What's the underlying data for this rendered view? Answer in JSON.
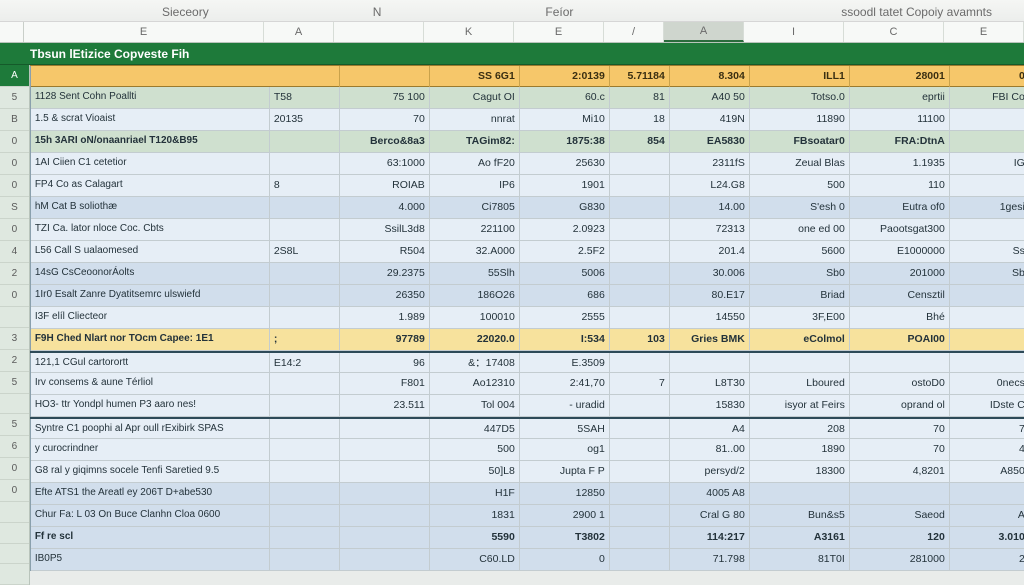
{
  "ribbon": {
    "tab_left": "Sieceory",
    "tab_mid_1": "N",
    "tab_mid_2": "Feíor",
    "tab_right": "ssoodl tatet Copoiy avamnts"
  },
  "column_letters": [
    "E",
    "A",
    "",
    "K",
    "E",
    "/",
    "A",
    "I",
    "C",
    "E"
  ],
  "column_letters_selected_index": 6,
  "title": "Tbsun lEtizice Copveste Fih",
  "row_gutter": [
    "A",
    "5",
    "B",
    "0",
    "0",
    "0",
    "S",
    "0",
    "4",
    "2",
    "0",
    "",
    "3",
    "2",
    "5",
    "",
    "5",
    "6",
    "0",
    "0"
  ],
  "columns": {
    "widths": [
      240,
      70,
      90,
      90,
      90,
      60,
      80,
      100,
      100,
      80
    ]
  },
  "header_row": [
    "",
    "",
    "SS 6G1",
    "2:0139",
    "5.71184",
    "8.304",
    "ILL1",
    "28001",
    "0"
  ],
  "rows": [
    {
      "style": "alt",
      "c": [
        "1128 Sent Cohn Poallti",
        "T58",
        "75 100",
        "Cagut OI",
        "60.c",
        "81",
        "A40 50",
        "Totso.0",
        "eprtii",
        "FBI Co"
      ]
    },
    {
      "style": "band1",
      "c": [
        "1.5 & scrat Vioaist",
        "20135",
        "70",
        "nnrat",
        "Mi10",
        "18",
        "419N",
        "11890",
        "11100",
        ""
      ]
    },
    {
      "style": "alt total",
      "c": [
        "15h 3ARI oN/onaanriael T120&B95",
        "",
        "Berco&8a3",
        "TAGim82:",
        "1875:38",
        "854",
        "EA5830",
        "FBsoatar0",
        "FRA:DtnA",
        ""
      ]
    },
    {
      "style": "band1",
      "c": [
        "1AI Ciien C1 cetetior",
        "",
        "63:1000",
        "Ao fF20",
        "25630",
        "",
        "2311fS",
        "Zeual Blas",
        "1.1935",
        "IG"
      ]
    },
    {
      "style": "band1",
      "c": [
        "FP4 Co as Calagart",
        "8",
        "ROIAB",
        "IP6",
        "1901",
        "",
        "L24.G8",
        "500",
        "110",
        ""
      ]
    },
    {
      "style": "band2",
      "c": [
        "hM Cat B soliothæ",
        "",
        "4.000",
        "Ci7805",
        "G830",
        "",
        "14.00",
        "S'esh 0",
        "Eutra of0",
        "1gesi"
      ]
    },
    {
      "style": "band1",
      "c": [
        "TZI Ca. lator nloce  Coc. Cbts",
        "",
        "SsilL3d8",
        "221100",
        "2.0923",
        "",
        "72313",
        "one ed 00",
        "Paootsgat300",
        ""
      ]
    },
    {
      "style": "band1",
      "c": [
        "L56 Call S ualaomesed",
        "2S8L",
        "R504",
        "32.A000",
        "2.5F2",
        "",
        "201.4",
        "5600",
        "E1000000",
        "Ss"
      ]
    },
    {
      "style": "band2",
      "c": [
        "14sG CsCeoonorÁolts",
        "",
        "29.2375",
        "55Slh",
        "5006",
        "",
        "30.006",
        "Sb0",
        "201000",
        "Sb"
      ]
    },
    {
      "style": "band2",
      "c": [
        "1Ir0 Esalt Zanre Dyatitsemrc ulswiefd",
        "",
        "26350",
        "186O26",
        "686",
        "",
        "80.E17",
        "Briad",
        "Censztil",
        ""
      ]
    },
    {
      "style": "band1",
      "c": [
        "I3F elíl Cliecteor",
        "",
        "1.989",
        "100010",
        "2555",
        "",
        "14550",
        "3F,E00",
        "Bhé",
        ""
      ]
    },
    {
      "style": "hl total",
      "c": [
        "F9H Ched Nlart nor TOcm Capee: 1E1",
        ";",
        "97789",
        "22020.0",
        "I:534",
        "103",
        "Gries BMK",
        "eColmol",
        "POAI00",
        ""
      ]
    },
    {
      "style": "band1 sep",
      "c": [
        "121,1 CGul cartorortt",
        "E14:2",
        "96",
        "&：17408",
        "E.3509",
        "",
        "",
        "",
        "",
        ""
      ]
    },
    {
      "style": "band1",
      "c": [
        "Irv consems & aune Térliol",
        "",
        "F801",
        "Ao12310",
        "2:41,70",
        "7",
        "L8T30",
        "Lboured",
        "ostoD0",
        "0necs"
      ]
    },
    {
      "style": "band1",
      "c": [
        "HO3- ttr Yondpl humen P3 aaro nes!",
        "",
        "23.511",
        "Tol 004",
        "- uradid",
        "",
        "15830",
        "isyor  at Feirs",
        "oprand ol",
        "IDste C"
      ]
    },
    {
      "style": "band1 sep",
      "c": [
        "Syntre C1 poophi al Apr oull rExibirk SPAS",
        "",
        "",
        "447D5",
        "5SAH",
        "",
        "A4",
        "208",
        "70",
        "7"
      ]
    },
    {
      "style": "band1",
      "c": [
        "y curocrindner",
        "",
        "",
        "500",
        "og1",
        "",
        "81..00",
        "1890",
        "70",
        "4"
      ]
    },
    {
      "style": "band1",
      "c": [
        "G8 ral y giqimns socele Tenfi Saretied 9.5",
        "",
        "",
        "50]L8",
        "Jupta F P",
        "",
        "persyd/2",
        "18300",
        "4,8201",
        "A850"
      ]
    },
    {
      "style": "band2",
      "c": [
        "Efte ATS1 the Areatl ey  206T D+abe530",
        "",
        "",
        "H1F",
        "12850",
        "",
        "4005 A8",
        "",
        "",
        ""
      ]
    },
    {
      "style": "band2",
      "c": [
        "Chur Fa: L 03 On Buce Clanhn Cloa 0600",
        "",
        "",
        "1831",
        "2900 1",
        "",
        "Cral G 80",
        "Bun&s5",
        "Saeod",
        "A"
      ]
    },
    {
      "style": "band2 total",
      "c": [
        "Ff re scl",
        "",
        "",
        "5590",
        "T3802",
        "",
        "114:217",
        "A3161",
        "120",
        "3.010"
      ]
    },
    {
      "style": "band2",
      "c": [
        "IB0P5",
        "",
        "",
        "C60.LD",
        "0",
        "",
        "71.798",
        "81T0I",
        "281000",
        "2"
      ]
    }
  ],
  "colors": {
    "header_bg": "#f6c76a",
    "band1": "#e6eef6",
    "band2": "#d1deec",
    "alt": "#cfe0cf",
    "hl": "#f7e29d",
    "title_bg": "#1e7a3a",
    "grid_line": "#c3ccd0"
  }
}
